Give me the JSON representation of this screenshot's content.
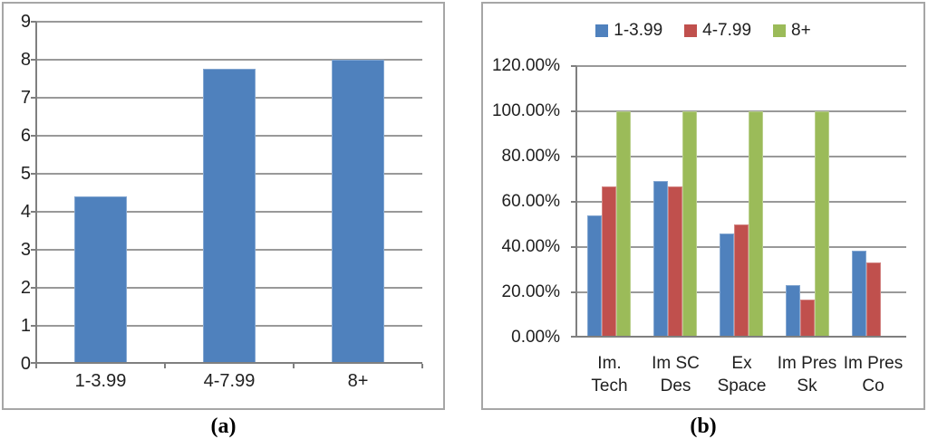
{
  "figure": {
    "caption_a": "(a)",
    "caption_b": "(b)"
  },
  "colors": {
    "series_blue": "#4F81BD",
    "series_red": "#C0504D",
    "series_green": "#9BBB59",
    "gridline": "#999999",
    "axis": "#7F7F7F",
    "panel_border": "#A6A6A6",
    "text": "#1F1F1F"
  },
  "chart_data": [
    {
      "id": "a",
      "type": "bar",
      "title": "",
      "categories": [
        "1-3.99",
        "4-7.99",
        "8+"
      ],
      "values": [
        4.4,
        7.76,
        8.0
      ],
      "xlabel": "",
      "ylabel": "",
      "ylim": [
        0,
        9
      ],
      "ytick_step": 1,
      "ytick_format": "number",
      "grid": true,
      "legend_position": "none",
      "bar_color_key": "series_blue"
    },
    {
      "id": "b",
      "type": "bar",
      "title": "",
      "categories": [
        [
          "Im.",
          "Tech"
        ],
        [
          "Im SC",
          "Des"
        ],
        [
          "Ex",
          "Space"
        ],
        [
          "Im Pres",
          "Sk"
        ],
        [
          "Im Pres",
          "Co"
        ]
      ],
      "series": [
        {
          "name": "1-3.99",
          "color_key": "series_blue",
          "values": [
            53.85,
            69.23,
            46.15,
            23.08,
            38.46
          ]
        },
        {
          "name": "4-7.99",
          "color_key": "series_red",
          "values": [
            66.67,
            66.67,
            50.0,
            16.67,
            33.33
          ]
        },
        {
          "name": "8+",
          "color_key": "series_green",
          "values": [
            100.0,
            100.0,
            100.0,
            100.0,
            0.0
          ]
        }
      ],
      "xlabel": "",
      "ylabel": "",
      "ylim": [
        0,
        120
      ],
      "ytick_step": 20,
      "ytick_format": "percent2",
      "grid": true,
      "legend_position": "top"
    }
  ]
}
